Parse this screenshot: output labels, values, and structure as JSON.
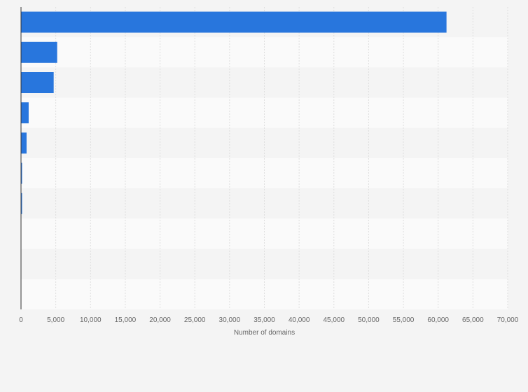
{
  "chart_data": {
    "type": "bar",
    "orientation": "horizontal",
    "title": "",
    "xlabel": "Number of domains",
    "ylabel": "",
    "xlim": [
      0,
      70000
    ],
    "x_ticks": [
      "0",
      "5,000",
      "10,000",
      "15,000",
      "20,000",
      "25,000",
      "30,000",
      "35,000",
      "40,000",
      "45,000",
      "50,000",
      "55,000",
      "60,000",
      "65,000",
      "70,000"
    ],
    "categories": [
      "",
      "",
      "",
      "",
      "",
      "",
      "",
      "",
      "",
      ""
    ],
    "values": [
      61200,
      5200,
      4700,
      1100,
      800,
      80,
      60,
      0,
      0,
      0
    ],
    "bar_color": "#2876dd",
    "grid": true,
    "legend": "none"
  }
}
